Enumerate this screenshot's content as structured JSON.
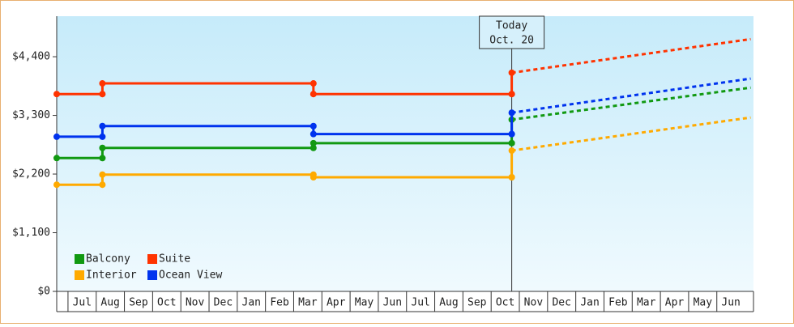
{
  "chart_data": {
    "type": "step-forecast",
    "legend_position": "lower left",
    "annotation": {
      "x": 15.23,
      "lines": [
        "Today",
        "Oct. 20"
      ]
    },
    "x": [
      -0.9,
      0.72,
      8.2,
      15.23
    ],
    "forecast_x": [
      15.23,
      23.7
    ],
    "xlim": [
      -0.9,
      23.8
    ],
    "xticks": [
      {
        "value": 0,
        "label": "Jul"
      },
      {
        "value": 1,
        "label": "Aug"
      },
      {
        "value": 2,
        "label": "Sep"
      },
      {
        "value": 3,
        "label": "Oct"
      },
      {
        "value": 4,
        "label": "Nov"
      },
      {
        "value": 5,
        "label": "Dec"
      },
      {
        "value": 6,
        "label": "Jan"
      },
      {
        "value": 7,
        "label": "Feb"
      },
      {
        "value": 8,
        "label": "Mar"
      },
      {
        "value": 9,
        "label": "Apr"
      },
      {
        "value": 10,
        "label": "May"
      },
      {
        "value": 11,
        "label": "Jun"
      },
      {
        "value": 12,
        "label": "Jul"
      },
      {
        "value": 13,
        "label": "Aug"
      },
      {
        "value": 14,
        "label": "Sep"
      },
      {
        "value": 15,
        "label": "Oct"
      },
      {
        "value": 16,
        "label": "Nov"
      },
      {
        "value": 17,
        "label": "Dec"
      },
      {
        "value": 18,
        "label": "Jan"
      },
      {
        "value": 19,
        "label": "Feb"
      },
      {
        "value": 20,
        "label": "Mar"
      },
      {
        "value": 21,
        "label": "Apr"
      },
      {
        "value": 22,
        "label": "May"
      },
      {
        "value": 23,
        "label": "Jun"
      }
    ],
    "ylim": [
      0,
      5160
    ],
    "yticks": [
      {
        "value": 0,
        "label": "$0"
      },
      {
        "value": 1100,
        "label": "$1,100"
      },
      {
        "value": 2200,
        "label": "$2,200"
      },
      {
        "value": 3300,
        "label": "$3,300"
      },
      {
        "value": 4400,
        "label": "$4,400"
      }
    ],
    "series": [
      {
        "name": "Balcony",
        "color": "#119911",
        "values": [
          2500,
          2690,
          2780,
          2780
        ],
        "forecast": [
          3220,
          3820
        ]
      },
      {
        "name": "Suite",
        "color": "#ff3300",
        "values": [
          3700,
          3900,
          3700,
          3700
        ],
        "forecast": [
          4100,
          4730
        ]
      },
      {
        "name": "Interior",
        "color": "#ffaa00",
        "values": [
          2000,
          2190,
          2140,
          2140
        ],
        "forecast": [
          2640,
          3260
        ]
      },
      {
        "name": "Ocean View",
        "color": "#0033ee",
        "values": [
          2900,
          3100,
          2950,
          2950
        ],
        "forecast": [
          3350,
          3990
        ]
      }
    ]
  }
}
